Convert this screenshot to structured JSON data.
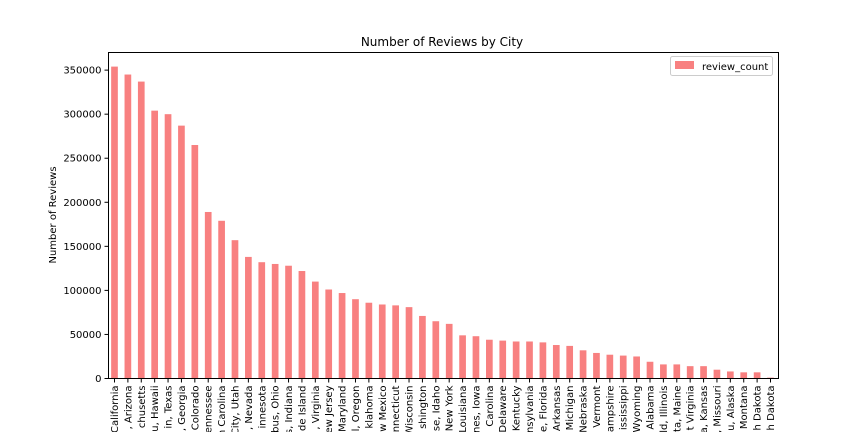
{
  "chart_data": {
    "type": "bar",
    "title": "Number of Reviews by City",
    "xlabel": "",
    "ylabel": "Number of Reviews",
    "ylim": [
      0,
      370000
    ],
    "yticks": [
      0,
      50000,
      100000,
      150000,
      200000,
      250000,
      300000,
      350000
    ],
    "grid": false,
    "legend_position": "top-right",
    "bar_color": "#f88080",
    "series": [
      {
        "name": "review_count",
        "values": [
          354000,
          345000,
          337000,
          304000,
          300000,
          287000,
          265000,
          189000,
          179000,
          157000,
          138000,
          132000,
          130000,
          128000,
          122000,
          110000,
          101000,
          97000,
          90000,
          86000,
          84000,
          83000,
          81000,
          71000,
          65000,
          62000,
          49000,
          48000,
          44000,
          43000,
          42000,
          42000,
          41000,
          38000,
          37000,
          32000,
          29000,
          27000,
          26000,
          25000,
          19000,
          16000,
          16000,
          14000,
          14000,
          10000,
          8000,
          7000,
          7000,
          1000
        ]
      }
    ],
    "categories": [
      "California",
      ", Arizona",
      "chusetts",
      "u, Hawaii",
      "in, Texas",
      ", Georgia",
      "Colorado",
      "ennessee",
      "n Carolina",
      "City, Utah",
      ", Nevada",
      "innesota",
      "bus, Ohio",
      "s, Indiana",
      "de Island",
      ", Virginia",
      "ew Jersey",
      "Maryland",
      "l, Oregon",
      "klahoma",
      "w Mexico",
      "nnecticut",
      "Wisconsin",
      "shington",
      "se, Idaho",
      "New York",
      "Louisiana",
      "nes, Iowa",
      "Carolina",
      "Delaware",
      "Kentucky",
      "nsylvania",
      "e, Florida",
      "Arkansas",
      "Michigan",
      "Nebraska",
      "Vermont",
      "ampshire",
      "ississippi",
      "Wyoming",
      "Alabama",
      "ld, Illinois",
      "nta, Maine",
      "t Virginia",
      "a, Kansas",
      ", Missouri",
      "u, Alaska",
      "Montana",
      "h Dakota",
      "h Dakota"
    ]
  }
}
